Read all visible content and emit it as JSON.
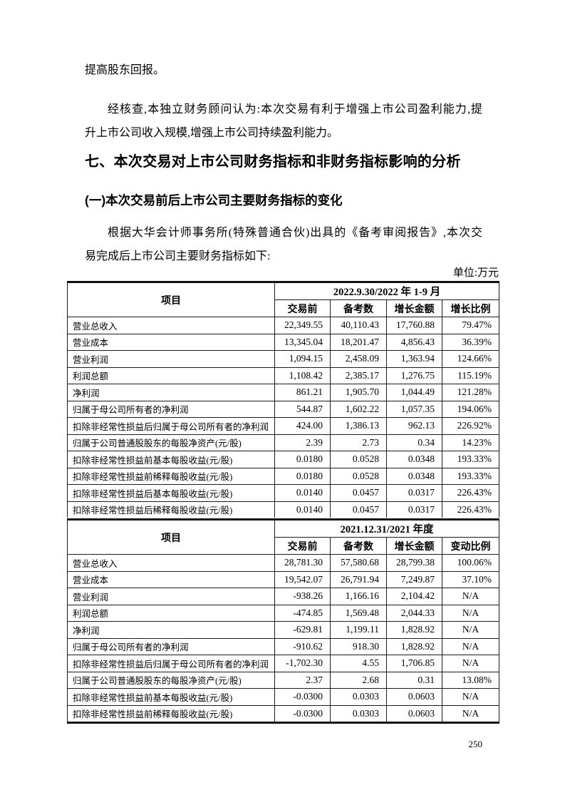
{
  "intro": {
    "line": "提高股东回报。"
  },
  "para_review": {
    "lines": [
      "经核查,本独立财务顾问认为:本次交易有利于增强上市公司盈利能力,提",
      "升上市公司收入规模,增强上市公司持续盈利能力。"
    ]
  },
  "heading_section": "七、本次交易对上市公司财务指标和非财务指标影响的分析",
  "heading_sub": "(一)本次交易前后上市公司主要财务指标的变化",
  "para_basis": {
    "lines": [
      "根据大华会计师事务所(特殊普通合伙)出具的《备考审阅报告》,本次交",
      "易完成后上市公司主要财务指标如下:"
    ]
  },
  "unit_label": "单位:万元",
  "tables": [
    {
      "item_header": "项目",
      "period_header": "2022.9.30/2022 年 1-9 月",
      "col_headers": [
        "交易前",
        "备考数",
        "增长金额",
        "增长比例"
      ],
      "rows": [
        [
          "营业总收入",
          "22,349.55",
          "40,110.43",
          "17,760.88",
          "79.47%"
        ],
        [
          "营业成本",
          "13,345.04",
          "18,201.47",
          "4,856.43",
          "36.39%"
        ],
        [
          "营业利润",
          "1,094.15",
          "2,458.09",
          "1,363.94",
          "124.66%"
        ],
        [
          "利润总额",
          "1,108.42",
          "2,385.17",
          "1,276.75",
          "115.19%"
        ],
        [
          "净利润",
          "861.21",
          "1,905.70",
          "1,044.49",
          "121.28%"
        ],
        [
          "归属于母公司所有者的净利润",
          "544.87",
          "1,602.22",
          "1,057.35",
          "194.06%"
        ],
        [
          "扣除非经常性损益后归属于母公司所有者的净利润",
          "424.00",
          "1,386.13",
          "962.13",
          "226.92%"
        ],
        [
          "归属于公司普通股股东的每股净资产(元/股)",
          "2.39",
          "2.73",
          "0.34",
          "14.23%"
        ],
        [
          "扣除非经常性损益前基本每股收益(元/股)",
          "0.0180",
          "0.0528",
          "0.0348",
          "193.33%"
        ],
        [
          "扣除非经常性损益前稀释每股收益(元/股)",
          "0.0180",
          "0.0528",
          "0.0348",
          "193.33%"
        ],
        [
          "扣除非经常性损益后基本每股收益(元/股)",
          "0.0140",
          "0.0457",
          "0.0317",
          "226.43%"
        ],
        [
          "扣除非经常性损益后稀释每股收益(元/股)",
          "0.0140",
          "0.0457",
          "0.0317",
          "226.43%"
        ]
      ]
    },
    {
      "item_header": "项目",
      "period_header": "2021.12.31/2021 年度",
      "col_headers": [
        "交易前",
        "备考数",
        "增长金额",
        "变动比例"
      ],
      "rows": [
        [
          "营业总收入",
          "28,781.30",
          "57,580.68",
          "28,799.38",
          "100.06%"
        ],
        [
          "营业成本",
          "19,542.07",
          "26,791.94",
          "7,249.87",
          "37.10%"
        ],
        [
          "营业利润",
          "-938.26",
          "1,166.16",
          "2,104.42",
          "N/A"
        ],
        [
          "利润总额",
          "-474.85",
          "1,569.48",
          "2,044.33",
          "N/A"
        ],
        [
          "净利润",
          "-629.81",
          "1,199.11",
          "1,828.92",
          "N/A"
        ],
        [
          "归属于母公司所有者的净利润",
          "-910.62",
          "918.30",
          "1,828.92",
          "N/A"
        ],
        [
          "扣除非经常性损益后归属于母公司所有者的净利润",
          "-1,702.30",
          "4.55",
          "1,706.85",
          "N/A"
        ],
        [
          "归属于公司普通股股东的每股净资产(元/股)",
          "2.37",
          "2.68",
          "0.31",
          "13.08%"
        ],
        [
          "扣除非经常性损益前基本每股收益(元/股)",
          "-0.0300",
          "0.0303",
          "0.0603",
          "N/A"
        ],
        [
          "扣除非经常性损益前稀释每股收益(元/股)",
          "-0.0300",
          "0.0303",
          "0.0603",
          "N/A"
        ]
      ]
    }
  ],
  "page_number": "250"
}
